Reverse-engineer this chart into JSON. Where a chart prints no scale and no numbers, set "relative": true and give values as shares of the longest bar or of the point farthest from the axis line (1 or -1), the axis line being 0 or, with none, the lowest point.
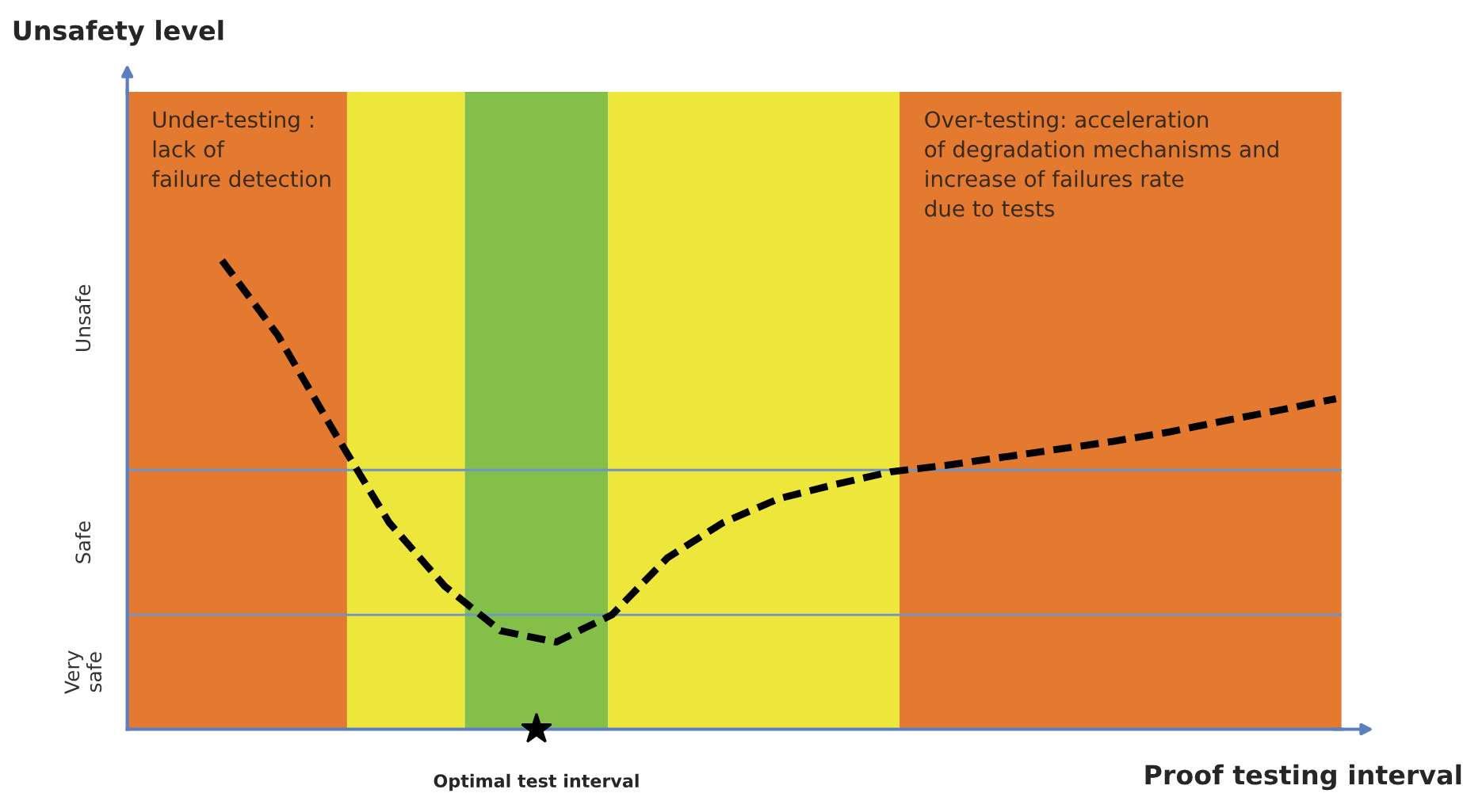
{
  "chart_data": {
    "type": "line",
    "relative": true,
    "xlabel": "Proof testing interval",
    "categories": [
      null,
      null,
      null,
      null,
      null,
      null,
      null,
      null,
      null,
      null,
      null,
      null,
      null,
      null,
      null,
      null,
      null,
      null,
      null,
      null,
      null
    ],
    "series": [
      {
        "color": "#000000",
        "values": [
          1.0,
          0.841,
          0.637,
          0.441,
          0.305,
          0.21,
          0.186,
          0.244,
          0.366,
          0.441,
          0.492,
          0.522,
          0.549,
          0.563,
          0.58,
          0.597,
          0.614,
          0.634,
          0.658,
          0.681,
          0.705
        ]
      }
    ],
    "line_style": "dashed",
    "ref_lines": [
      {
        "axis": "y",
        "value": 0.244,
        "color": "#6d95c8"
      },
      {
        "axis": "y",
        "value": 0.553,
        "color": "#6d95c8"
      }
    ],
    "annotations": [
      "Unsafety level",
      "Under-testing :\nlack of\nfailure detection",
      "Over-testing: acceleration\nof degradation mechanisms and\nincrease of failures rate\ndue to tests",
      "Very\nsafe",
      "Safe",
      "Unsafe",
      "Optimal test interval"
    ]
  }
}
